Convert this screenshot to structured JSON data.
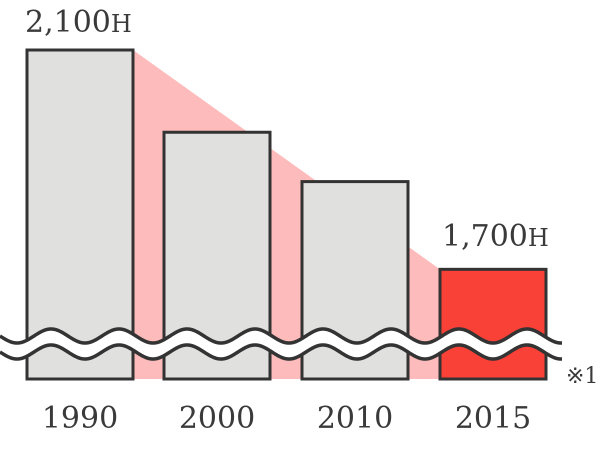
{
  "chart_data": {
    "type": "bar",
    "categories": [
      "1990",
      "2000",
      "2010",
      "2015"
    ],
    "values": [
      2100,
      1950,
      1860,
      1700
    ],
    "data_labels": [
      {
        "index": 0,
        "value": "2,100",
        "unit": "H"
      },
      {
        "index": 3,
        "value": "1,700",
        "unit": "H"
      }
    ],
    "axis_break": true,
    "footnote": "※1",
    "title": "",
    "xlabel": "",
    "ylabel": "",
    "ylim": [
      1500,
      2100
    ],
    "grid": false,
    "legend": "none",
    "colors": {
      "bar": "#e0e0de",
      "highlight_bar": "#fa4137",
      "bar_outline": "#333333",
      "trend_band": "#fdbcbb",
      "text": "#3a3a3a"
    }
  }
}
